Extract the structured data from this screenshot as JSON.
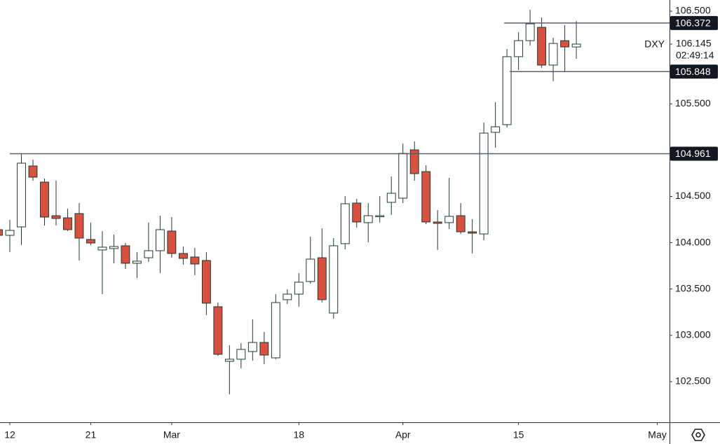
{
  "chart_data": {
    "type": "candlestick",
    "symbol": "DXY",
    "last_price": 106.145,
    "countdown": "02:49:14",
    "up_color": "#ffffff",
    "down_color": "#d9503f",
    "border_color": "#1f3a2e",
    "level_color": "#5d606b",
    "levels": [
      104.961,
      106.372,
      105.848
    ],
    "xlim": [
      0.15,
      58.06
    ],
    "xticks": [
      {
        "value": 1,
        "label": "12"
      },
      {
        "value": 8,
        "label": "21"
      },
      {
        "value": 15,
        "label": "Mar"
      },
      {
        "value": 26,
        "label": "18"
      },
      {
        "value": 35,
        "label": "Apr"
      },
      {
        "value": 45,
        "label": "15"
      },
      {
        "value": 57,
        "label": "May"
      }
    ],
    "ylim": [
      102.061,
      106.621
    ],
    "yticks": [
      {
        "value": 102.5,
        "label": "102.500"
      },
      {
        "value": 103,
        "label": "103.000"
      },
      {
        "value": 103.5,
        "label": "103.500"
      },
      {
        "value": 104,
        "label": "104.000"
      },
      {
        "value": 104.5,
        "label": "104.500"
      },
      {
        "value": 105.5,
        "label": "105.500"
      },
      {
        "value": 106.5,
        "label": "106.500"
      }
    ],
    "open": [
      104.141,
      104.08,
      104.171,
      104.829,
      104.655,
      104.292,
      104.269,
      104.315,
      104.035,
      103.922,
      103.937,
      103.967,
      103.778,
      103.838,
      103.914,
      104.126,
      103.884,
      103.846,
      103.808,
      103.309,
      102.719,
      102.742,
      102.825,
      102.923,
      102.757,
      103.385,
      103.445,
      103.581,
      103.838,
      103.241,
      103.99,
      104.428,
      104.217,
      104.285,
      104.436,
      104.481,
      105.003,
      104.768,
      104.224,
      104.217,
      104.292,
      104.118,
      104.095,
      105.192,
      105.275,
      106.009,
      106.182,
      106.326,
      105.918,
      106.182,
      106.114
    ],
    "high": [
      104.201,
      104.247,
      104.957,
      104.897,
      104.693,
      104.67,
      104.368,
      104.428,
      104.217,
      104.126,
      104.088,
      103.997,
      103.899,
      104.217,
      104.292,
      104.277,
      103.959,
      103.944,
      103.899,
      103.354,
      102.893,
      102.916,
      103.173,
      103.037,
      103.445,
      103.498,
      103.672,
      104.065,
      104.156,
      104.05,
      104.504,
      104.474,
      104.428,
      104.504,
      104.716,
      105.071,
      105.094,
      104.836,
      104.353,
      104.7,
      104.428,
      104.254,
      105.298,
      105.517,
      106.092,
      106.273,
      106.515,
      106.432,
      106.213,
      106.349,
      106.394
    ],
    "low": [
      104.012,
      103.899,
      103.975,
      104.67,
      104.186,
      104.186,
      104.126,
      103.808,
      103.975,
      103.445,
      103.778,
      103.717,
      103.619,
      103.793,
      103.672,
      103.838,
      103.763,
      103.649,
      103.218,
      102.78,
      102.364,
      102.644,
      102.727,
      102.689,
      102.742,
      103.339,
      103.309,
      103.559,
      103.354,
      103.181,
      103.929,
      104.164,
      104.005,
      104.217,
      104.3,
      104.428,
      104.67,
      104.201,
      103.922,
      104.148,
      104.095,
      103.884,
      104.027,
      105.026,
      105.245,
      105.865,
      106.13,
      105.888,
      105.744,
      105.842,
      105.986
    ],
    "close": [
      104.08,
      104.133,
      104.859,
      104.708,
      104.277,
      104.262,
      104.141,
      104.05,
      103.997,
      103.952,
      103.959,
      103.778,
      103.801,
      103.914,
      104.141,
      103.884,
      103.831,
      103.77,
      103.347,
      102.795,
      102.742,
      102.848,
      102.923,
      102.787,
      103.354,
      103.445,
      103.574,
      103.823,
      103.385,
      103.967,
      104.421,
      104.224,
      104.292,
      104.292,
      104.534,
      104.965,
      104.746,
      104.224,
      104.209,
      104.285,
      104.118,
      104.103,
      105.184,
      105.252,
      106.009,
      106.182,
      106.364,
      105.918,
      106.152,
      106.114,
      106.145
    ]
  }
}
